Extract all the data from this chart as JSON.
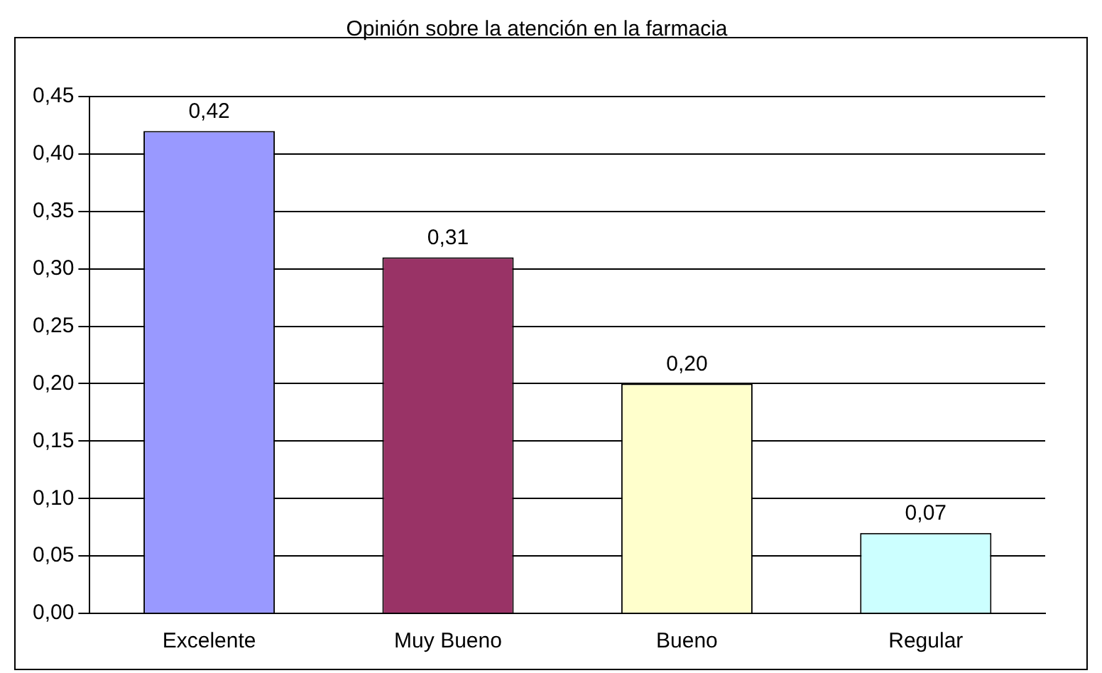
{
  "chart_data": {
    "type": "bar",
    "title": "Opinión sobre la atención en la farmacia",
    "categories": [
      "Excelente",
      "Muy Bueno",
      "Bueno",
      "Regular"
    ],
    "values": [
      0.42,
      0.31,
      0.2,
      0.07
    ],
    "colors": [
      "#9999ff",
      "#993366",
      "#ffffcc",
      "#ccffff"
    ],
    "value_labels": [
      "0,42",
      "0,31",
      "0,20",
      "0,07"
    ],
    "ylim": [
      0,
      0.45
    ],
    "yticks": [
      {
        "value": 0,
        "label": "0,00"
      },
      {
        "value": 0.05,
        "label": "0,05"
      },
      {
        "value": 0.1,
        "label": "0,10"
      },
      {
        "value": 0.15,
        "label": "0,15"
      },
      {
        "value": 0.2,
        "label": "0,20"
      },
      {
        "value": 0.25,
        "label": "0,25"
      },
      {
        "value": 0.3,
        "label": "0,30"
      },
      {
        "value": 0.35,
        "label": "0,35"
      },
      {
        "value": 0.4,
        "label": "0,40"
      },
      {
        "value": 0.45,
        "label": "0,45"
      }
    ],
    "grid": "y",
    "legend": false
  }
}
